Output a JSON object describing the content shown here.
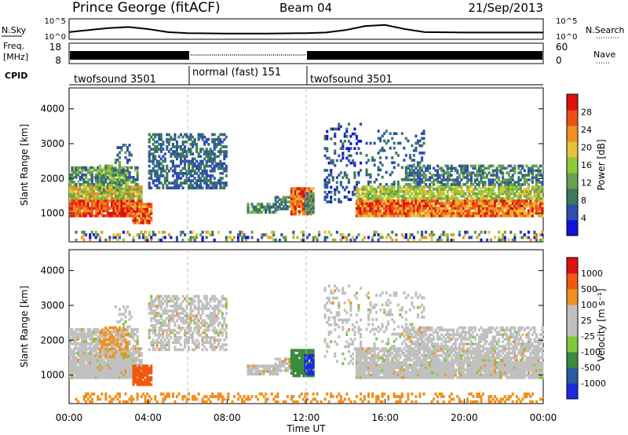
{
  "header": {
    "station": "Prince George (fitACF)",
    "beam": "Beam 04",
    "date": "21/Sep/2013"
  },
  "labels": {
    "nsky": "N.Sky",
    "nsearch": "N.Search",
    "freq_top": "Freq.",
    "freq_unit": "[MHz]",
    "nave": "Nave",
    "cpid": "CPID",
    "xlabel": "Time UT"
  },
  "colors": {
    "power": [
      "#1010e0",
      "#2e4fb0",
      "#3c7a5a",
      "#6aa050",
      "#8ec83a",
      "#e6c23a",
      "#f0901e",
      "#f05018",
      "#e01010"
    ],
    "velocity": [
      "#e01010",
      "#f05a10",
      "#f0901e",
      "#c0c0c0",
      "#c0c0c0",
      "#7ec83a",
      "#3c8a3c",
      "#2a5aa0",
      "#1a2ae0"
    ]
  },
  "chart_data": [
    {
      "type": "line",
      "name": "noise-panel",
      "x_range_hours": [
        0,
        24
      ],
      "left_axis": {
        "label": "N.Sky",
        "ticks": [
          "10^5",
          "10^0"
        ]
      },
      "right_axis": {
        "label": "N.Search",
        "ticks": [
          "10^5",
          "10^0"
        ]
      },
      "nsky_profile": {
        "x": [
          0,
          1,
          2,
          3,
          4,
          5,
          6,
          8,
          10,
          12,
          13,
          14,
          15,
          16,
          17,
          18,
          20,
          22,
          24
        ],
        "level": [
          0.35,
          0.45,
          0.55,
          0.6,
          0.5,
          0.35,
          0.3,
          0.28,
          0.28,
          0.3,
          0.33,
          0.45,
          0.65,
          0.7,
          0.5,
          0.35,
          0.33,
          0.33,
          0.33
        ]
      }
    },
    {
      "type": "line",
      "name": "frequency-panel",
      "left_axis": {
        "label": "Freq. [MHz]",
        "ticks": [
          18,
          8
        ]
      },
      "right_axis": {
        "label": "Nave",
        "ticks": [
          60,
          0
        ]
      },
      "cpid_segments": [
        {
          "start": 0,
          "end": 6,
          "label": "twofsound 3501"
        },
        {
          "start": 6,
          "end": 12,
          "label": "normal (fast) 151"
        },
        {
          "start": 12,
          "end": 24,
          "label": "twofsound 3501"
        }
      ]
    },
    {
      "type": "heatmap",
      "name": "power",
      "ylabel": "Slant Range [km]",
      "y_ticks": [
        1000,
        2000,
        3000,
        4000
      ],
      "ylim": [
        180,
        4600
      ],
      "colorbar_label": "Power [dB]",
      "colorbar_ticks": [
        4,
        8,
        12,
        16,
        20,
        24,
        28
      ]
    },
    {
      "type": "heatmap",
      "name": "velocity",
      "ylabel": "Slant Range [km]",
      "y_ticks": [
        1000,
        2000,
        3000,
        4000
      ],
      "ylim": [
        180,
        4600
      ],
      "colorbar_label": "Velocity [m s⁻¹]",
      "colorbar_ticks": [
        1000,
        500,
        100,
        25,
        -25,
        -100,
        -500,
        -1000
      ],
      "x_ticks": [
        "00:00",
        "04:00",
        "08:00",
        "12:00",
        "16:00",
        "20:00",
        "00:00"
      ],
      "xlabel": "Time UT"
    }
  ]
}
